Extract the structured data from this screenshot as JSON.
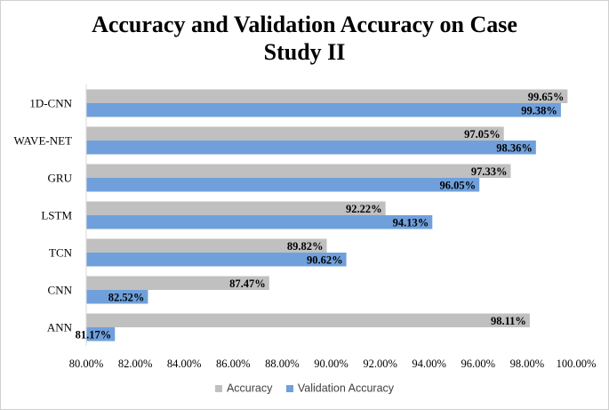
{
  "chart_data": {
    "type": "bar",
    "orientation": "horizontal",
    "title_lines": [
      "Accuracy and Validation Accuracy on Case",
      "Study II"
    ],
    "categories": [
      "1D-CNN",
      "WAVE-NET",
      "GRU",
      "LSTM",
      "TCN",
      "CNN",
      "ANN"
    ],
    "series": [
      {
        "name": "Accuracy",
        "color": "#C0C0C0",
        "values": [
          99.65,
          97.05,
          97.33,
          92.22,
          89.82,
          87.47,
          98.11
        ],
        "labels": [
          "99.65%",
          "97.05%",
          "97.33%",
          "92.22%",
          "89.82%",
          "87.47%",
          "98.11%"
        ]
      },
      {
        "name": "Validation Accuracy",
        "color": "#6FA0DC",
        "values": [
          99.38,
          98.36,
          96.05,
          94.13,
          90.62,
          82.52,
          81.17
        ],
        "labels": [
          "99.38%",
          "98.36%",
          "96.05%",
          "94.13%",
          "90.62%",
          "82.52%",
          "81.17%"
        ]
      }
    ],
    "xlim": [
      80,
      100
    ],
    "xticks": [
      80,
      82,
      84,
      86,
      88,
      90,
      92,
      94,
      96,
      98,
      100
    ],
    "xtick_labels": [
      "80.00%",
      "82.00%",
      "84.00%",
      "86.00%",
      "88.00%",
      "90.00%",
      "92.00%",
      "94.00%",
      "96.00%",
      "98.00%",
      "100.00%"
    ],
    "xlabel": "",
    "ylabel": "",
    "grid": false,
    "legend_position": "bottom"
  }
}
